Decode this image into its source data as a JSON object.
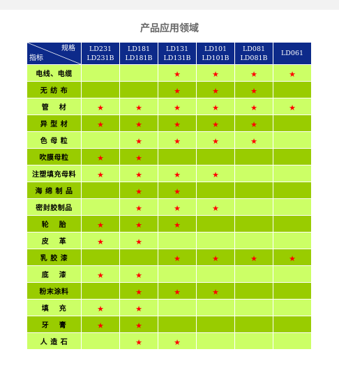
{
  "page": {
    "title": "产品应用领域"
  },
  "table": {
    "corner_top": "规格",
    "corner_bottom": "指标",
    "star_char": "★",
    "columns": [
      {
        "line1": "LD231",
        "line2": "LD231B"
      },
      {
        "line1": "LD181",
        "line2": "LD181B"
      },
      {
        "line1": "LD131",
        "line2": "LD131B"
      },
      {
        "line1": "LD101",
        "line2": "LD101B"
      },
      {
        "line1": "LD081",
        "line2": "LD081B"
      },
      {
        "line1": "LD061",
        "line2": ""
      }
    ],
    "rows": [
      {
        "label": "电线、电缆",
        "marks": [
          false,
          false,
          true,
          true,
          true,
          true
        ]
      },
      {
        "label": "无 纺 布",
        "marks": [
          false,
          false,
          true,
          true,
          true,
          false
        ]
      },
      {
        "label": "管　 材",
        "marks": [
          true,
          true,
          true,
          true,
          true,
          true
        ]
      },
      {
        "label": "异 型 材",
        "marks": [
          true,
          true,
          true,
          true,
          true,
          false
        ]
      },
      {
        "label": "色 母 粒",
        "marks": [
          false,
          true,
          true,
          true,
          true,
          false
        ]
      },
      {
        "label": "吹膜母粒",
        "marks": [
          true,
          true,
          false,
          false,
          false,
          false
        ]
      },
      {
        "label": "注塑填充母料",
        "marks": [
          true,
          true,
          true,
          true,
          false,
          false
        ]
      },
      {
        "label": "海 绵 制 品",
        "marks": [
          false,
          true,
          true,
          false,
          false,
          false
        ]
      },
      {
        "label": "密封胶制品",
        "marks": [
          false,
          true,
          true,
          true,
          false,
          false
        ]
      },
      {
        "label": "轮　 胎",
        "marks": [
          true,
          true,
          true,
          false,
          false,
          false
        ]
      },
      {
        "label": "皮　 革",
        "marks": [
          true,
          true,
          false,
          false,
          false,
          false
        ]
      },
      {
        "label": "乳 胶 漆",
        "marks": [
          false,
          false,
          true,
          true,
          true,
          true
        ]
      },
      {
        "label": "底　 漆",
        "marks": [
          true,
          true,
          false,
          false,
          false,
          false
        ]
      },
      {
        "label": "粉末涂料",
        "marks": [
          false,
          true,
          true,
          true,
          false,
          false
        ]
      },
      {
        "label": "填　 充",
        "marks": [
          true,
          true,
          false,
          false,
          false,
          false
        ]
      },
      {
        "label": "牙　 膏",
        "marks": [
          true,
          true,
          false,
          false,
          false,
          false
        ]
      },
      {
        "label": "人 造 石",
        "marks": [
          false,
          true,
          true,
          false,
          false,
          false
        ]
      }
    ]
  }
}
